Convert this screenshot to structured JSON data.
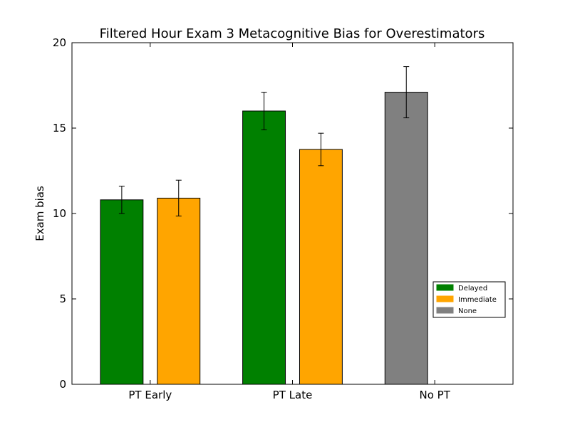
{
  "chart_data": {
    "type": "bar",
    "title": "Filtered Hour Exam 3 Metacognitive Bias for Overestimators",
    "xlabel": "",
    "ylabel": "Exam bias",
    "ylim": [
      0,
      20
    ],
    "yticks": [
      0,
      5,
      10,
      15,
      20
    ],
    "categories": [
      "PT Early",
      "PT Late",
      "No PT"
    ],
    "series": [
      {
        "name": "Delayed",
        "color": "#008000",
        "values": [
          10.8,
          16.0,
          null
        ],
        "errors": [
          0.8,
          1.1,
          null
        ]
      },
      {
        "name": "Immediate",
        "color": "#FFA500",
        "values": [
          10.9,
          13.75,
          null
        ],
        "errors": [
          1.05,
          0.95,
          null
        ]
      },
      {
        "name": "None",
        "color": "#808080",
        "values": [
          null,
          null,
          17.1
        ],
        "errors": [
          null,
          null,
          1.5
        ]
      }
    ],
    "legend_position": "lower-right",
    "grid": false
  }
}
